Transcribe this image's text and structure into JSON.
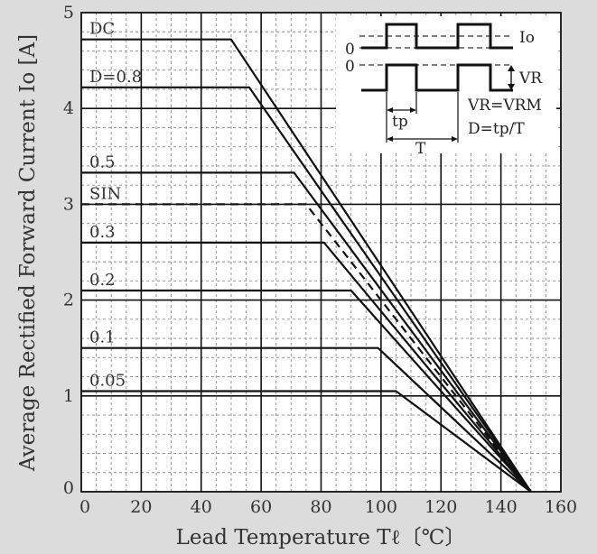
{
  "chart_data": {
    "type": "line",
    "xlabel": "Lead Temperature  Tℓ〔℃〕",
    "ylabel": "Average Rectified Forward Current  Io [A]",
    "xlim": [
      0,
      160
    ],
    "ylim": [
      0,
      5
    ],
    "x_ticks": [
      "0",
      "20",
      "40",
      "60",
      "80",
      "100",
      "120",
      "140",
      "160"
    ],
    "y_ticks": [
      "0",
      "1",
      "2",
      "3",
      "4",
      "5"
    ],
    "grid": true,
    "series": [
      {
        "name": "DC",
        "dashed": false,
        "points": [
          [
            0,
            4.72
          ],
          [
            50,
            4.72
          ],
          [
            150,
            0
          ]
        ]
      },
      {
        "name": "D=0.8",
        "dashed": false,
        "points": [
          [
            0,
            4.22
          ],
          [
            56,
            4.22
          ],
          [
            150,
            0
          ]
        ]
      },
      {
        "name": "0.5",
        "dashed": false,
        "points": [
          [
            0,
            3.33
          ],
          [
            71,
            3.33
          ],
          [
            150,
            0
          ]
        ]
      },
      {
        "name": "SIN",
        "dashed": true,
        "points": [
          [
            0,
            3.0
          ],
          [
            75,
            3.0
          ],
          [
            150,
            0
          ]
        ]
      },
      {
        "name": "0.3",
        "dashed": false,
        "points": [
          [
            0,
            2.6
          ],
          [
            81,
            2.6
          ],
          [
            150,
            0
          ]
        ]
      },
      {
        "name": "0.2",
        "dashed": false,
        "points": [
          [
            0,
            2.1
          ],
          [
            90,
            2.1
          ],
          [
            150,
            0
          ]
        ]
      },
      {
        "name": "0.1",
        "dashed": false,
        "points": [
          [
            0,
            1.5
          ],
          [
            99,
            1.5
          ],
          [
            150,
            0
          ]
        ]
      },
      {
        "name": "0.05",
        "dashed": false,
        "points": [
          [
            0,
            1.05
          ],
          [
            105,
            1.05
          ],
          [
            150,
            0
          ]
        ]
      }
    ],
    "inset": {
      "io_label": "Io",
      "vr_label": "VR",
      "zero_top": "0",
      "zero_bottom": "0",
      "tp_label": "tp",
      "t_label": "T",
      "eq1": "VR=VRM",
      "eq2": "D=tp/T"
    }
  }
}
